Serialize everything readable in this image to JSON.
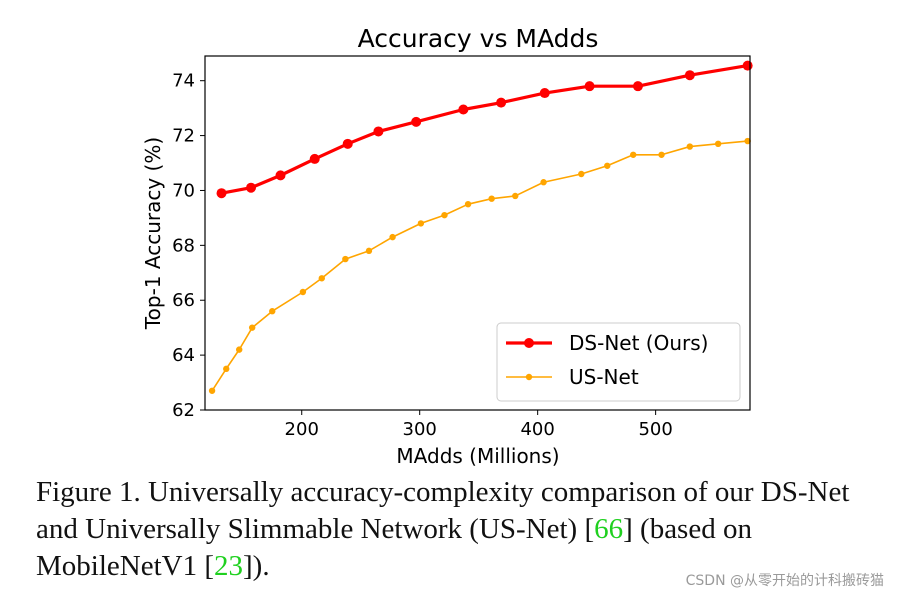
{
  "chart_data": {
    "type": "line",
    "title": "Accuracy vs MAdds",
    "xlabel": "MAdds (Millions)",
    "ylabel": "Top-1 Accuracy (%)",
    "xlim": [
      118,
      580
    ],
    "ylim": [
      62,
      74.9
    ],
    "xticks": [
      200,
      300,
      400,
      500
    ],
    "yticks": [
      62,
      64,
      66,
      68,
      70,
      72,
      74
    ],
    "legend_position": "lower-right",
    "series": [
      {
        "name": "DS-Net (Ours)",
        "color": "#ff0000",
        "x": [
          132,
          157,
          182,
          211,
          239,
          265,
          297,
          337,
          369,
          406,
          444,
          485,
          529,
          578
        ],
        "y": [
          69.9,
          70.1,
          70.55,
          71.15,
          71.7,
          72.15,
          72.5,
          72.95,
          73.2,
          73.55,
          73.8,
          73.8,
          74.2,
          74.55
        ]
      },
      {
        "name": "US-Net",
        "color": "#ffa500",
        "x": [
          124,
          136,
          147,
          158,
          175,
          201,
          217,
          237,
          257,
          277,
          301,
          321,
          341,
          361,
          381,
          405,
          437,
          459,
          481,
          505,
          529,
          553,
          578
        ],
        "y": [
          62.7,
          63.5,
          64.2,
          65.0,
          65.6,
          66.3,
          66.8,
          67.5,
          67.8,
          68.3,
          68.8,
          69.1,
          69.5,
          69.7,
          69.8,
          70.3,
          70.6,
          70.9,
          71.3,
          71.3,
          71.6,
          71.7,
          71.8
        ]
      }
    ]
  },
  "caption": {
    "prefix": "Figure 1. Universally accuracy-complexity comparison of our DS-Net and Universally Slimmable Network (US-Net) [",
    "ref1": "66",
    "middle": "] (based on MobileNetV1 [",
    "ref2": "23",
    "suffix": "])."
  },
  "watermark": "CSDN @从零开始的计科搬砖猫"
}
